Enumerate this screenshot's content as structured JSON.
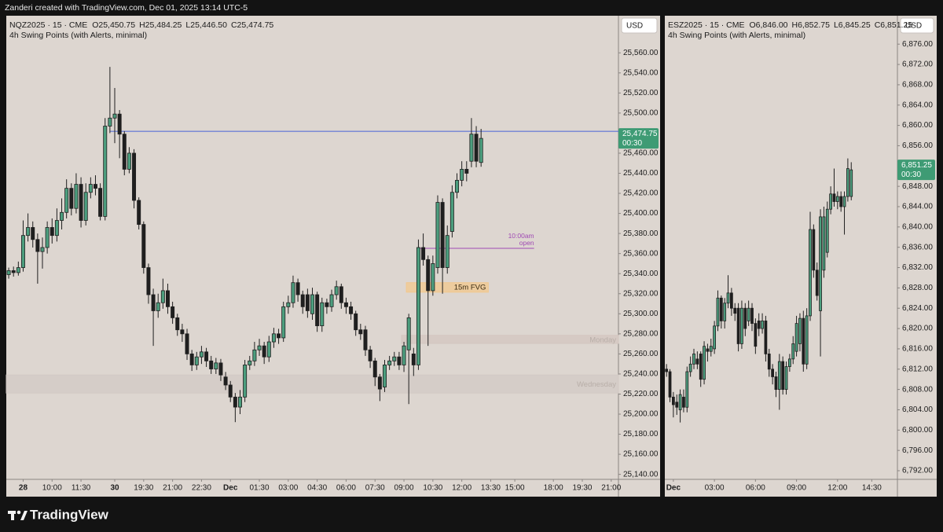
{
  "caption": "Zanderi created with TradingView.com, Dec 01, 2025 13:14 UTC-5",
  "brand": "TradingView",
  "chart_data": [
    {
      "type": "candlestick",
      "title": "NQZ2025 · 15 · CME",
      "ohlc_labels": [
        "O25,450.75",
        "H25,484.25",
        "L25,446.50",
        "C25,474.75"
      ],
      "indicator": "4h Swing Points (with Alerts, minimal)",
      "currency": "USD",
      "up_color": "#4c9e7e",
      "down_color": "#1f1f1f",
      "xlim": [
        -0.5,
        126.5
      ],
      "xticks": [
        {
          "value": 3,
          "label": "28"
        },
        {
          "value": 9,
          "label": "10:00"
        },
        {
          "value": 15,
          "label": "11:30"
        },
        {
          "value": 22,
          "label": "30"
        },
        {
          "value": 28,
          "label": "19:30"
        },
        {
          "value": 34,
          "label": "21:00"
        },
        {
          "value": 40,
          "label": "22:30"
        },
        {
          "value": 46,
          "label": "Dec"
        },
        {
          "value": 52,
          "label": "01:30"
        },
        {
          "value": 58,
          "label": "03:00"
        },
        {
          "value": 64,
          "label": "04:30"
        },
        {
          "value": 70,
          "label": "06:00"
        },
        {
          "value": 76,
          "label": "07:30"
        },
        {
          "value": 82,
          "label": "09:00"
        },
        {
          "value": 88,
          "label": "10:30"
        },
        {
          "value": 94,
          "label": "12:00"
        },
        {
          "value": 100,
          "label": "13:30"
        },
        {
          "value": 105,
          "label": "15:00"
        },
        {
          "value": 113,
          "label": "18:00"
        },
        {
          "value": 119,
          "label": "19:30"
        },
        {
          "value": 125,
          "label": "21:00"
        }
      ],
      "ylim": [
        25135,
        25597
      ],
      "yticks": [
        {
          "value": 25140,
          "label": "25,140.00"
        },
        {
          "value": 25160,
          "label": "25,160.00"
        },
        {
          "value": 25180,
          "label": "25,180.00"
        },
        {
          "value": 25200,
          "label": "25,200.00"
        },
        {
          "value": 25220,
          "label": "25,220.00"
        },
        {
          "value": 25240,
          "label": "25,240.00"
        },
        {
          "value": 25260,
          "label": "25,260.00"
        },
        {
          "value": 25280,
          "label": "25,280.00"
        },
        {
          "value": 25300,
          "label": "25,300.00"
        },
        {
          "value": 25320,
          "label": "25,320.00"
        },
        {
          "value": 25340,
          "label": "25,340.00"
        },
        {
          "value": 25360,
          "label": "25,360.00"
        },
        {
          "value": 25380,
          "label": "25,380.00"
        },
        {
          "value": 25400,
          "label": "25,400.00"
        },
        {
          "value": 25420,
          "label": "25,420.00"
        },
        {
          "value": 25440,
          "label": "25,440.00"
        },
        {
          "value": 25460,
          "label": "25,460.00"
        },
        {
          "value": 25480,
          "label": "25,480.00"
        },
        {
          "value": 25500,
          "label": "25,500.00"
        },
        {
          "value": 25520,
          "label": "25,520.00"
        },
        {
          "value": 25540,
          "label": "25,540.00"
        },
        {
          "value": 25560,
          "label": "25,560.00"
        }
      ],
      "last_price": {
        "value": 25474.75,
        "label": "25,474.75"
      },
      "countdown": "00:30",
      "hlines": [
        {
          "value": 25481.75,
          "from": 21,
          "color": "#4a63d6"
        },
        {
          "value": 25365.25,
          "from": 85,
          "to": 109,
          "color": "#a04ab4",
          "label_lines": [
            "10:00am",
            "open"
          ]
        }
      ],
      "zones": [
        {
          "label": "Wednesday",
          "from": 0,
          "top": 25239,
          "bottom": 25221,
          "color": "#d2c9c5"
        },
        {
          "label": "Monday",
          "from": 82,
          "top": 25278.5,
          "bottom": 25270.5,
          "color": "#d3c6c0"
        },
        {
          "label": "15m FVG",
          "from": 83,
          "to": 99,
          "top": 25331,
          "bottom": 25321.5,
          "color": "#f1c88e"
        }
      ],
      "x": [
        0,
        1,
        2,
        3,
        4,
        5,
        6,
        7,
        8,
        9,
        10,
        11,
        12,
        13,
        14,
        15,
        16,
        17,
        18,
        19,
        20,
        21,
        22,
        23,
        24,
        25,
        26,
        27,
        28,
        29,
        30,
        31,
        32,
        33,
        34,
        35,
        36,
        37,
        38,
        39,
        40,
        41,
        42,
        43,
        44,
        45,
        46,
        47,
        48,
        49,
        50,
        51,
        52,
        53,
        54,
        55,
        56,
        57,
        58,
        59,
        60,
        61,
        62,
        63,
        64,
        65,
        66,
        67,
        68,
        69,
        70,
        71,
        72,
        73,
        74,
        75,
        76,
        77,
        78,
        79,
        80,
        81,
        82,
        83,
        84,
        85,
        86,
        87,
        88,
        89,
        90,
        91,
        92,
        93,
        94,
        95,
        96,
        97,
        98
      ],
      "open": [
        25339,
        25343,
        25341,
        25346,
        25378,
        25386,
        25374,
        25362,
        25366,
        25386,
        25378,
        25393,
        25401,
        25425,
        25405,
        25429,
        25393,
        25421,
        25429,
        25425,
        25397,
        25487,
        25495,
        25499,
        25479,
        25444,
        25460,
        25413,
        25389,
        25346,
        25319,
        25303,
        25311,
        25323,
        25307,
        25296,
        25284,
        25280,
        25260,
        25249,
        25257,
        25262,
        25253,
        25245,
        25251,
        25237,
        25229,
        25217,
        25207,
        25217,
        25249,
        25253,
        25264,
        25268,
        25257,
        25272,
        25280,
        25276,
        25307,
        25311,
        25331,
        25319,
        25319,
        25300,
        25319,
        25288,
        25311,
        25307,
        25319,
        25327,
        25311,
        25307,
        25300,
        25284,
        25284,
        25264,
        25253,
        25237,
        25227,
        25249,
        25253,
        25257,
        25249,
        25264,
        25260,
        25249,
        25366,
        25354,
        25323,
        25346,
        25411,
        25346,
        25382,
        25421,
        25433,
        25444,
        25452,
        25479,
        25450.75
      ],
      "high": [
        25346,
        25347,
        25352,
        25393,
        25400,
        25392,
        25380,
        25376,
        25392,
        25395,
        25405,
        25415,
        25434,
        25430,
        25440,
        25436,
        25430,
        25436,
        25438,
        25430,
        25495,
        25546,
        25525,
        25503,
        25482,
        25466,
        25464,
        25416,
        25392,
        25350,
        25325,
        25320,
        25335,
        25330,
        25312,
        25300,
        25290,
        25285,
        25264,
        25262,
        25268,
        25266,
        25258,
        25256,
        25255,
        25242,
        25233,
        25221,
        25224,
        25254,
        25258,
        25272,
        25275,
        25272,
        25278,
        25286,
        25285,
        25312,
        25318,
        25338,
        25335,
        25323,
        25325,
        25326,
        25322,
        25316,
        25315,
        25324,
        25333,
        25330,
        25316,
        25312,
        25303,
        25290,
        25288,
        25268,
        25256,
        25240,
        25254,
        25258,
        25262,
        25262,
        25272,
        25300,
        25266,
        25374,
        25380,
        25358,
        25358,
        25418,
        25415,
        25388,
        25428,
        25440,
        25452,
        25452,
        25495,
        25487,
        25484.25
      ],
      "low": [
        25335,
        25337,
        25338,
        25342,
        25372,
        25366,
        25330,
        25345,
        25360,
        25370,
        25372,
        25384,
        25395,
        25398,
        25400,
        25386,
        25388,
        25415,
        25418,
        25393,
        25393,
        25480,
        25470,
        25455,
        25438,
        25440,
        25405,
        25384,
        25340,
        25310,
        25268,
        25296,
        25305,
        25300,
        25290,
        25278,
        25272,
        25254,
        25243,
        25244,
        25250,
        25247,
        25240,
        25240,
        25233,
        25224,
        25212,
        25192,
        25200,
        25212,
        25244,
        25248,
        25258,
        25250,
        25252,
        25266,
        25270,
        25272,
        25300,
        25306,
        25312,
        25300,
        25296,
        25294,
        25282,
        25282,
        25300,
        25302,
        25314,
        25305,
        25300,
        25294,
        25278,
        25274,
        25258,
        25246,
        25228,
        25213,
        25222,
        25244,
        25248,
        25244,
        25242,
        25210,
        25238,
        25244,
        25348,
        25268,
        25318,
        25340,
        25320,
        25340,
        25376,
        25415,
        25427,
        25432,
        25446,
        25446,
        25446.5
      ],
      "close": [
        25343,
        25341,
        25346,
        25378,
        25386,
        25374,
        25362,
        25366,
        25386,
        25378,
        25393,
        25401,
        25425,
        25405,
        25429,
        25393,
        25421,
        25429,
        25425,
        25397,
        25487,
        25495,
        25499,
        25479,
        25444,
        25460,
        25413,
        25389,
        25346,
        25319,
        25303,
        25311,
        25323,
        25307,
        25296,
        25284,
        25280,
        25260,
        25249,
        25257,
        25262,
        25253,
        25245,
        25251,
        25239,
        25229,
        25217,
        25207,
        25217,
        25249,
        25253,
        25264,
        25268,
        25257,
        25272,
        25280,
        25276,
        25307,
        25311,
        25331,
        25319,
        25307,
        25303,
        25319,
        25288,
        25311,
        25307,
        25319,
        25327,
        25311,
        25307,
        25300,
        25284,
        25280,
        25264,
        25253,
        25237,
        25225,
        25249,
        25253,
        25257,
        25249,
        25268,
        25296,
        25249,
        25366,
        25354,
        25323,
        25350,
        25411,
        25346,
        25378,
        25421,
        25433,
        25444,
        25440,
        25479,
        25452,
        25474.75
      ]
    },
    {
      "type": "candlestick",
      "title": "ESZ2025 · 15 · CME",
      "ohlc_labels": [
        "O6,846.00",
        "H6,852.75",
        "L6,845.25",
        "C6,851.25"
      ],
      "indicator": "4h Swing Points (with Alerts, minimal)",
      "currency": "USD",
      "up_color": "#4c9e7e",
      "down_color": "#1f1f1f",
      "xlim": [
        -0.5,
        67.5
      ],
      "xticks": [
        {
          "value": 2,
          "label": "Dec"
        },
        {
          "value": 14,
          "label": "03:00"
        },
        {
          "value": 26,
          "label": "06:00"
        },
        {
          "value": 38,
          "label": "09:00"
        },
        {
          "value": 50,
          "label": "12:00"
        },
        {
          "value": 60,
          "label": "14:30"
        }
      ],
      "ylim": [
        6790.3,
        6881.6
      ],
      "yticks": [
        {
          "value": 6792,
          "label": "6,792.00"
        },
        {
          "value": 6796,
          "label": "6,796.00"
        },
        {
          "value": 6800,
          "label": "6,800.00"
        },
        {
          "value": 6804,
          "label": "6,804.00"
        },
        {
          "value": 6808,
          "label": "6,808.00"
        },
        {
          "value": 6812,
          "label": "6,812.00"
        },
        {
          "value": 6816,
          "label": "6,816.00"
        },
        {
          "value": 6820,
          "label": "6,820.00"
        },
        {
          "value": 6824,
          "label": "6,824.00"
        },
        {
          "value": 6828,
          "label": "6,828.00"
        },
        {
          "value": 6832,
          "label": "6,832.00"
        },
        {
          "value": 6836,
          "label": "6,836.00"
        },
        {
          "value": 6840,
          "label": "6,840.00"
        },
        {
          "value": 6844,
          "label": "6,844.00"
        },
        {
          "value": 6848,
          "label": "6,848.00"
        },
        {
          "value": 6852,
          "label": "6,852.00"
        },
        {
          "value": 6856,
          "label": "6,856.00"
        },
        {
          "value": 6860,
          "label": "6,860.00"
        },
        {
          "value": 6864,
          "label": "6,864.00"
        },
        {
          "value": 6868,
          "label": "6,868.00"
        },
        {
          "value": 6872,
          "label": "6,872.00"
        },
        {
          "value": 6876,
          "label": "6,876.00"
        }
      ],
      "last_price": {
        "value": 6851.25,
        "label": "6,851.25"
      },
      "countdown": "00:30",
      "x": [
        0,
        1,
        2,
        3,
        4,
        5,
        6,
        7,
        8,
        9,
        10,
        11,
        12,
        13,
        14,
        15,
        16,
        17,
        18,
        19,
        20,
        21,
        22,
        23,
        24,
        25,
        26,
        27,
        28,
        29,
        30,
        31,
        32,
        33,
        34,
        35,
        36,
        37,
        38,
        39,
        40,
        41,
        42,
        43,
        44,
        45,
        46,
        47,
        48,
        49,
        50,
        51,
        52,
        53,
        54
      ],
      "open": [
        6812,
        6811.5,
        6806.5,
        6805.5,
        6804,
        6806.5,
        6804.5,
        6811.5,
        6813,
        6814,
        6815,
        6810,
        6816,
        6815.5,
        6816,
        6820.5,
        6826,
        6821.5,
        6825,
        6827,
        6824,
        6824,
        6817,
        6824,
        6821.5,
        6824,
        6821,
        6821.5,
        6820,
        6821.5,
        6815,
        6812,
        6810.5,
        6808,
        6813.5,
        6808,
        6812.5,
        6814,
        6815.5,
        6817,
        6822,
        6813,
        6822.5,
        6839.5,
        6831.5,
        6823.5,
        6831.5,
        6835,
        6843.5,
        6846.5,
        6845,
        6846,
        6844,
        6846,
        6846.0
      ],
      "high": [
        6813,
        6812,
        6807.5,
        6807,
        6808,
        6808,
        6812.5,
        6814.5,
        6816,
        6815.5,
        6815.5,
        6817.5,
        6817,
        6818,
        6821.5,
        6827.5,
        6826.5,
        6826,
        6830.5,
        6828,
        6825,
        6825,
        6825.5,
        6825,
        6825.5,
        6825,
        6822,
        6823,
        6823,
        6822.5,
        6816,
        6813,
        6811.5,
        6815,
        6814.5,
        6813.5,
        6815,
        6818.5,
        6822.5,
        6823,
        6823.5,
        6824,
        6843,
        6840.5,
        6833,
        6843.5,
        6844,
        6845,
        6848,
        6851.5,
        6847,
        6847,
        6847,
        6853.5,
        6852.75
      ],
      "low": [
        6810.5,
        6805.5,
        6802.5,
        6803,
        6801.5,
        6803.5,
        6803.5,
        6810.5,
        6812,
        6812,
        6808.5,
        6809,
        6813.5,
        6814.5,
        6815,
        6819.5,
        6820,
        6820,
        6824,
        6822.5,
        6821.5,
        6815.5,
        6816,
        6818.5,
        6820.5,
        6819.5,
        6815,
        6818.5,
        6819,
        6813.5,
        6810.5,
        6809,
        6806.5,
        6804,
        6807,
        6807,
        6811.5,
        6813,
        6814.5,
        6815.5,
        6811.5,
        6812,
        6821.5,
        6830,
        6825.5,
        6814.5,
        6830,
        6834,
        6842.5,
        6844,
        6843.5,
        6843,
        6838.5,
        6845,
        6845.25
      ],
      "close": [
        6811.5,
        6806.5,
        6805,
        6804.5,
        6807,
        6804.5,
        6811.5,
        6813,
        6815,
        6813,
        6810,
        6816.5,
        6815.5,
        6816.5,
        6820.5,
        6826,
        6821.5,
        6825,
        6827,
        6824,
        6823,
        6817,
        6824,
        6820,
        6824,
        6821,
        6816.5,
        6820,
        6821.5,
        6815,
        6812,
        6810.5,
        6808,
        6813.5,
        6808,
        6812.5,
        6814,
        6817,
        6821,
        6822,
        6813,
        6822.5,
        6839.5,
        6831.5,
        6826.5,
        6842,
        6842,
        6843.5,
        6846.5,
        6845,
        6846,
        6844,
        6846,
        6851.5,
        6851.25
      ]
    }
  ]
}
